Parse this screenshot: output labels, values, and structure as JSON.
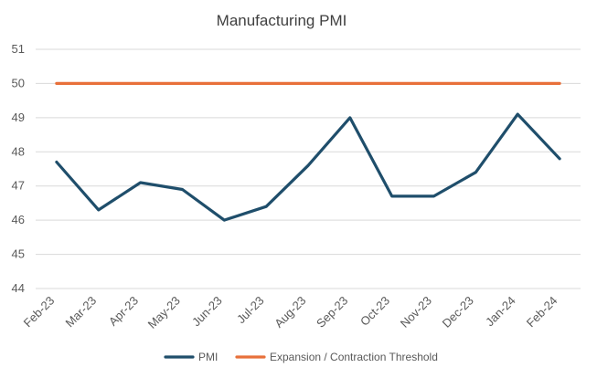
{
  "chart_data": {
    "type": "line",
    "title": "Manufacturing PMI",
    "xlabel": "",
    "ylabel": "",
    "categories": [
      "Feb-23",
      "Mar-23",
      "Apr-23",
      "May-23",
      "Jun-23",
      "Jul-23",
      "Aug-23",
      "Sep-23",
      "Oct-23",
      "Nov-23",
      "Dec-23",
      "Jan-24",
      "Feb-24"
    ],
    "yticks": [
      44,
      45,
      46,
      47,
      48,
      49,
      50,
      51
    ],
    "ylim": [
      44,
      51
    ],
    "grid": true,
    "legend_position": "bottom",
    "series": [
      {
        "name": "PMI",
        "color": "#1f4e6b",
        "values": [
          47.7,
          46.3,
          47.1,
          46.9,
          46.0,
          46.4,
          47.6,
          49.0,
          46.7,
          46.7,
          47.4,
          49.1,
          47.8
        ]
      },
      {
        "name": "Expansion / Contraction Threshold",
        "color": "#e8703a",
        "values": [
          50,
          50,
          50,
          50,
          50,
          50,
          50,
          50,
          50,
          50,
          50,
          50,
          50
        ]
      }
    ]
  }
}
